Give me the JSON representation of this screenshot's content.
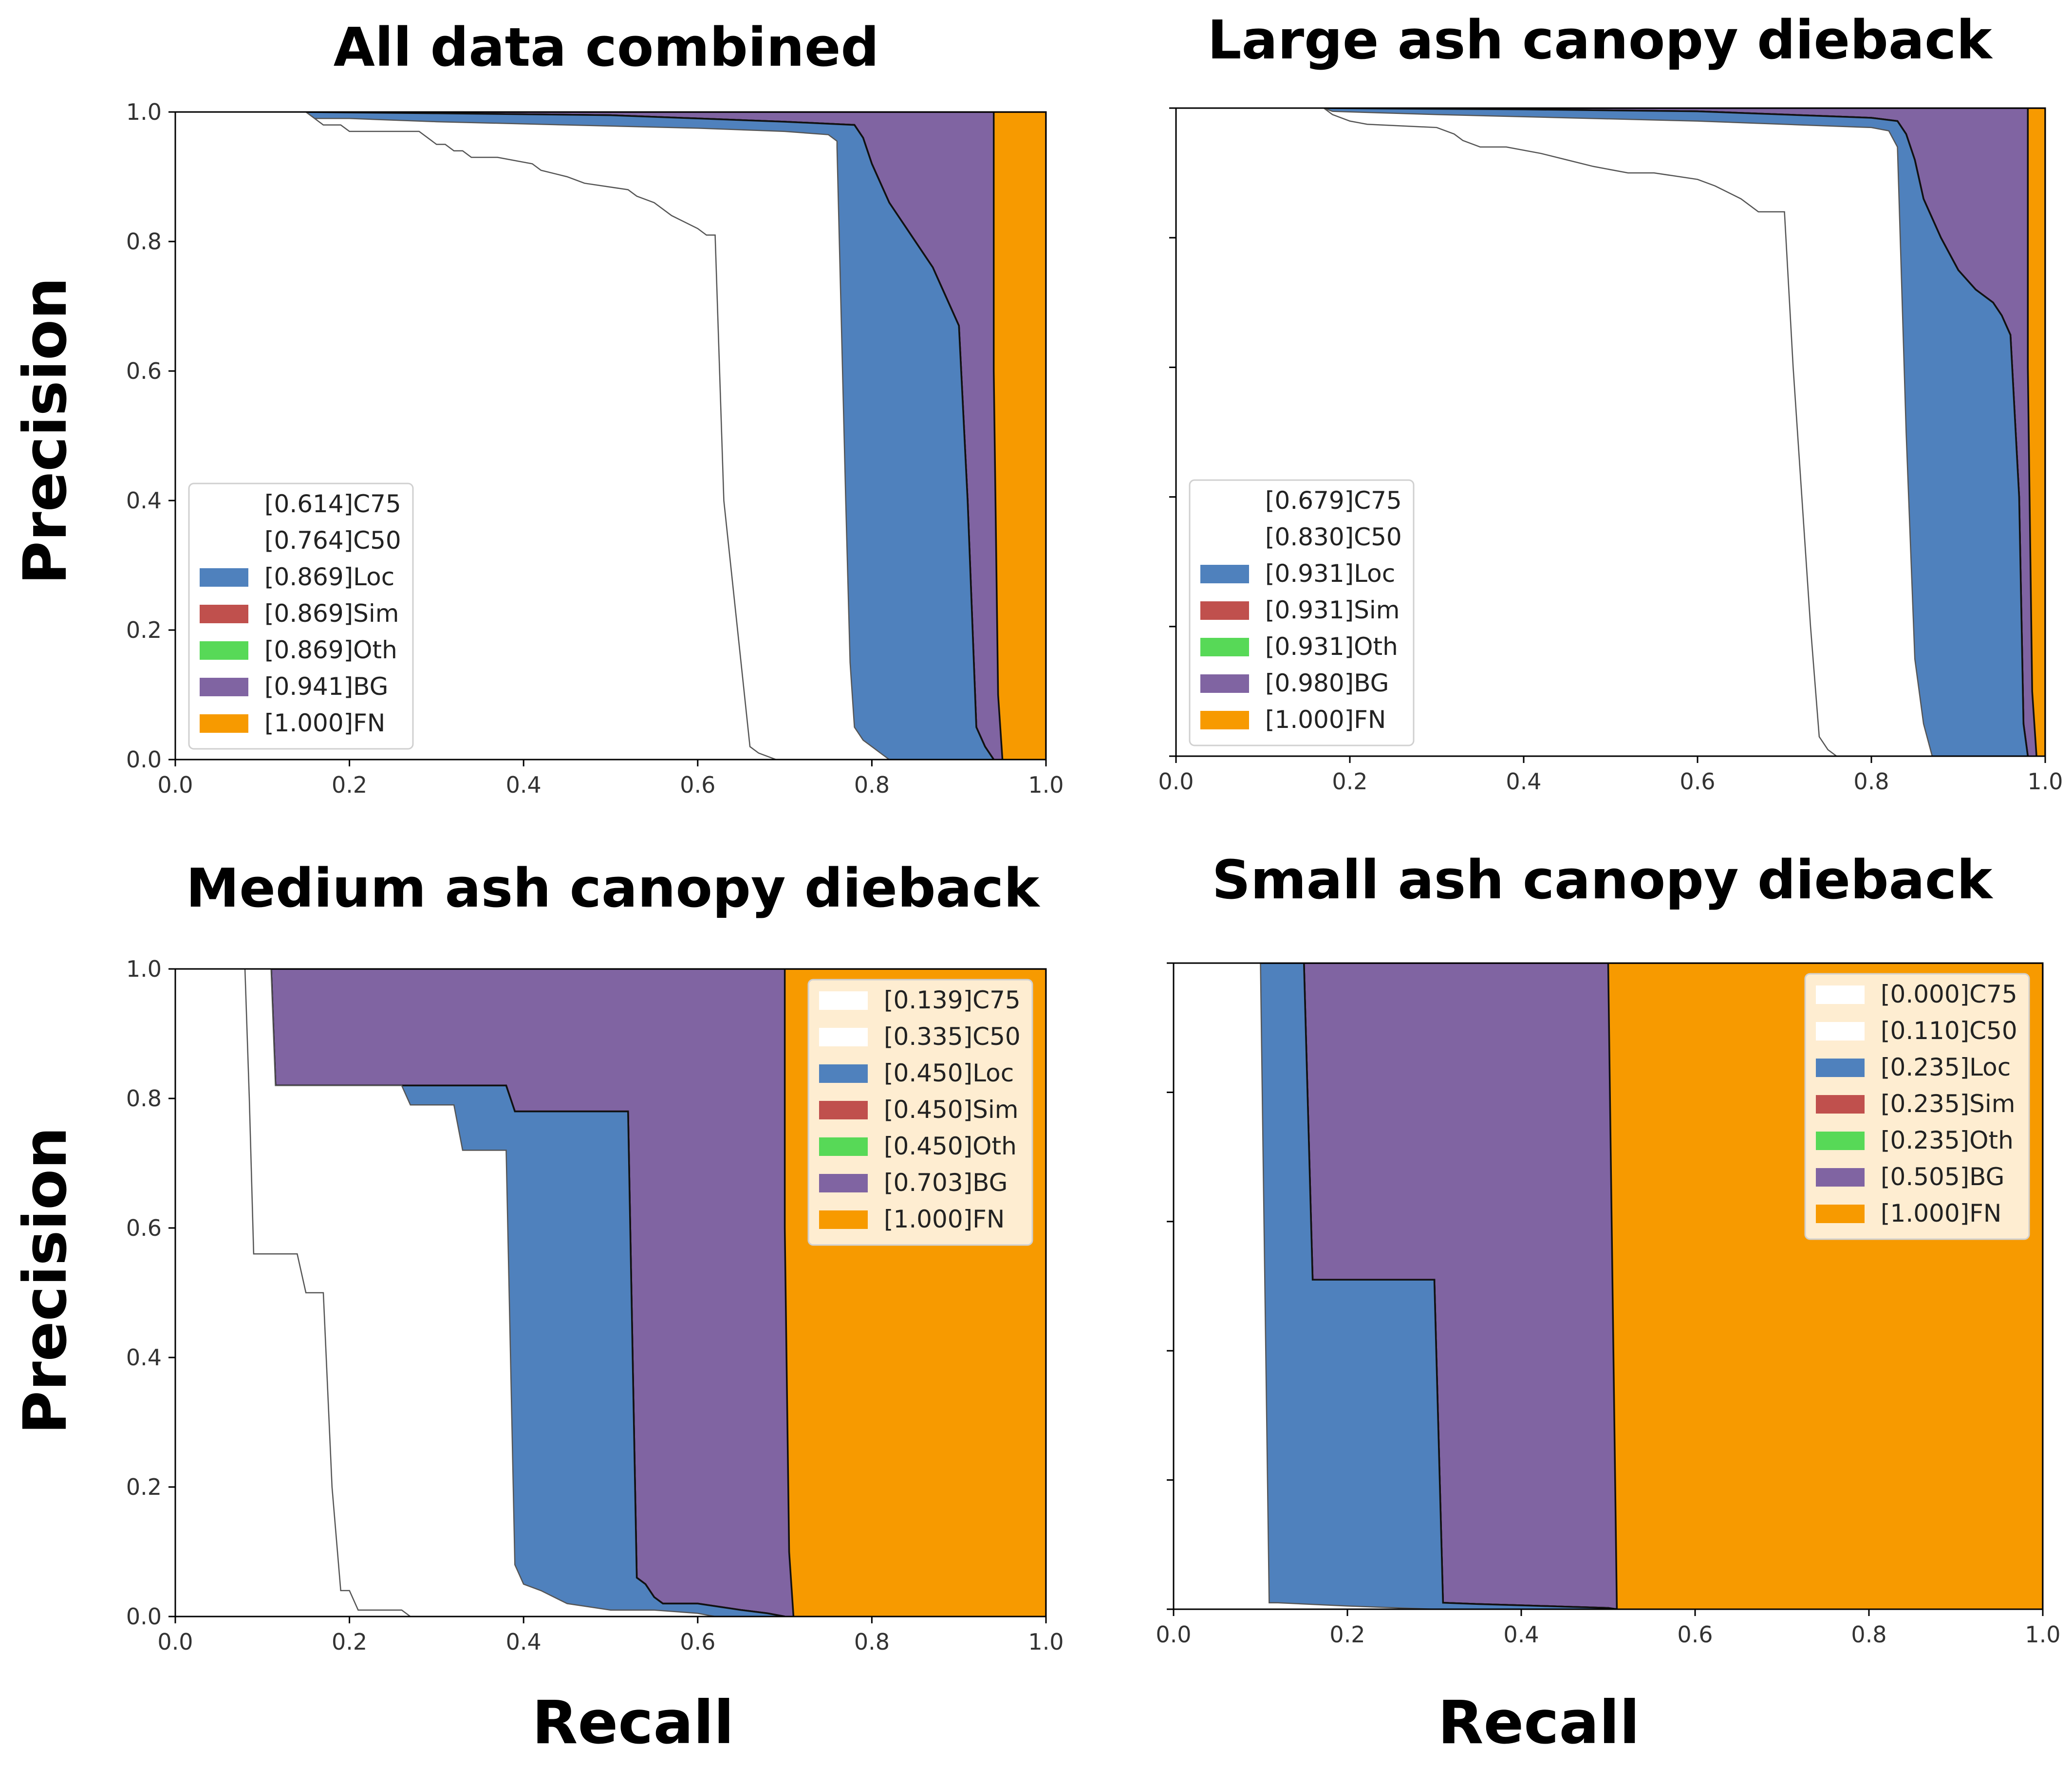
{
  "figure": {
    "ylabel": "Precision",
    "xlabel": "Recall"
  },
  "colors": {
    "C75": "#ffffff",
    "C50": "#ffffff",
    "Loc": "#4f81bd",
    "Sim": "#c0504d",
    "Oth": "#57d957",
    "BG": "#8064a2",
    "FN": "#f79a00"
  },
  "chart_data": [
    {
      "type": "area",
      "title": "All data combined",
      "xlabel": "Recall",
      "ylabel": "Precision",
      "xlim": [
        0,
        1
      ],
      "ylim": [
        0,
        1
      ],
      "xticks": [
        "0.0",
        "0.2",
        "0.4",
        "0.6",
        "0.8",
        "1.0"
      ],
      "yticks": [
        "0.0",
        "0.2",
        "0.4",
        "0.6",
        "0.8",
        "1.0"
      ],
      "show_yticklabels": true,
      "legend_position": "lower-left",
      "legend": [
        {
          "key": "C75",
          "label": "[0.614]C75"
        },
        {
          "key": "C50",
          "label": "[0.764]C50"
        },
        {
          "key": "Loc",
          "label": "[0.869]Loc"
        },
        {
          "key": "Sim",
          "label": "[0.869]Sim"
        },
        {
          "key": "Oth",
          "label": "[0.869]Oth"
        },
        {
          "key": "BG",
          "label": "[0.941]BG"
        },
        {
          "key": "FN",
          "label": "[1.000]FN"
        }
      ],
      "curves": {
        "C75": {
          "x": [
            0.0,
            0.15,
            0.17,
            0.19,
            0.2,
            0.28,
            0.3,
            0.31,
            0.32,
            0.33,
            0.34,
            0.36,
            0.37,
            0.41,
            0.42,
            0.45,
            0.47,
            0.52,
            0.53,
            0.55,
            0.57,
            0.6,
            0.61,
            0.62,
            0.63,
            0.66,
            0.67,
            0.69
          ],
          "y": [
            1.0,
            1.0,
            0.98,
            0.98,
            0.97,
            0.97,
            0.95,
            0.95,
            0.94,
            0.94,
            0.93,
            0.93,
            0.93,
            0.92,
            0.91,
            0.9,
            0.89,
            0.88,
            0.87,
            0.86,
            0.84,
            0.82,
            0.81,
            0.81,
            0.4,
            0.02,
            0.01,
            0.0
          ]
        },
        "C50": {
          "x": [
            0.0,
            0.15,
            0.16,
            0.2,
            0.3,
            0.45,
            0.6,
            0.7,
            0.75,
            0.76,
            0.76,
            0.77,
            0.775,
            0.78,
            0.79,
            0.8,
            0.81,
            0.82
          ],
          "y": [
            1.0,
            1.0,
            0.99,
            0.99,
            0.985,
            0.98,
            0.975,
            0.97,
            0.965,
            0.955,
            0.945,
            0.4,
            0.15,
            0.05,
            0.03,
            0.02,
            0.01,
            0.0
          ]
        },
        "Loc": {
          "x": [
            0.0,
            0.15,
            0.3,
            0.5,
            0.6,
            0.7,
            0.78,
            0.79,
            0.8,
            0.82,
            0.83,
            0.84,
            0.85,
            0.87,
            0.88,
            0.89,
            0.9,
            0.91,
            0.92,
            0.93,
            0.94
          ],
          "y": [
            1.0,
            1.0,
            0.998,
            0.995,
            0.99,
            0.985,
            0.98,
            0.96,
            0.92,
            0.86,
            0.84,
            0.82,
            0.8,
            0.76,
            0.73,
            0.7,
            0.67,
            0.4,
            0.05,
            0.02,
            0.0
          ]
        },
        "Sim": {
          "x": [
            0.0,
            0.15,
            0.3,
            0.5,
            0.6,
            0.7,
            0.78,
            0.79,
            0.8,
            0.82,
            0.83,
            0.84,
            0.85,
            0.87,
            0.88,
            0.89,
            0.9,
            0.91,
            0.92,
            0.93,
            0.94
          ],
          "y": [
            1.0,
            1.0,
            0.998,
            0.995,
            0.99,
            0.985,
            0.98,
            0.96,
            0.92,
            0.86,
            0.84,
            0.82,
            0.8,
            0.76,
            0.73,
            0.7,
            0.67,
            0.4,
            0.05,
            0.02,
            0.0
          ]
        },
        "Oth": {
          "x": [
            0.0,
            0.15,
            0.3,
            0.5,
            0.6,
            0.7,
            0.78,
            0.79,
            0.8,
            0.82,
            0.83,
            0.84,
            0.85,
            0.87,
            0.88,
            0.89,
            0.9,
            0.91,
            0.92,
            0.93,
            0.94
          ],
          "y": [
            1.0,
            1.0,
            0.998,
            0.995,
            0.99,
            0.985,
            0.98,
            0.96,
            0.92,
            0.86,
            0.84,
            0.82,
            0.8,
            0.76,
            0.73,
            0.7,
            0.67,
            0.4,
            0.05,
            0.02,
            0.0
          ]
        },
        "BG": {
          "x": [
            0.0,
            0.94,
            0.94,
            0.945,
            0.95
          ],
          "y": [
            1.0,
            1.0,
            0.6,
            0.1,
            0.0
          ]
        },
        "FN": {
          "x": [
            0.0,
            1.0,
            1.0
          ],
          "y": [
            1.0,
            1.0,
            0.0
          ]
        }
      }
    },
    {
      "type": "area",
      "title": "Large ash canopy dieback",
      "xlabel": "Recall",
      "ylabel": "Precision",
      "xlim": [
        0,
        1
      ],
      "ylim": [
        0,
        1
      ],
      "xticks": [
        "0.0",
        "0.2",
        "0.4",
        "0.6",
        "0.8",
        "1.0"
      ],
      "yticks": [
        "0.0",
        "0.2",
        "0.4",
        "0.6",
        "0.8",
        "1.0"
      ],
      "show_yticklabels": false,
      "legend_position": "lower-left",
      "legend": [
        {
          "key": "C75",
          "label": "[0.679]C75"
        },
        {
          "key": "C50",
          "label": "[0.830]C50"
        },
        {
          "key": "Loc",
          "label": "[0.931]Loc"
        },
        {
          "key": "Sim",
          "label": "[0.931]Sim"
        },
        {
          "key": "Oth",
          "label": "[0.931]Oth"
        },
        {
          "key": "BG",
          "label": "[0.980]BG"
        },
        {
          "key": "FN",
          "label": "[1.000]FN"
        }
      ],
      "curves": {
        "C75": {
          "x": [
            0.0,
            0.17,
            0.18,
            0.2,
            0.22,
            0.3,
            0.32,
            0.33,
            0.35,
            0.38,
            0.42,
            0.45,
            0.48,
            0.52,
            0.55,
            0.6,
            0.62,
            0.65,
            0.67,
            0.69,
            0.7,
            0.71,
            0.72,
            0.73,
            0.74,
            0.75,
            0.76
          ],
          "y": [
            1.0,
            1.0,
            0.99,
            0.98,
            0.975,
            0.97,
            0.96,
            0.95,
            0.94,
            0.94,
            0.93,
            0.92,
            0.91,
            0.9,
            0.9,
            0.89,
            0.88,
            0.86,
            0.84,
            0.84,
            0.84,
            0.6,
            0.4,
            0.2,
            0.03,
            0.01,
            0.0
          ]
        },
        "C50": {
          "x": [
            0.0,
            0.17,
            0.18,
            0.3,
            0.45,
            0.6,
            0.7,
            0.8,
            0.82,
            0.83,
            0.84,
            0.85,
            0.86,
            0.87
          ],
          "y": [
            1.0,
            1.0,
            0.995,
            0.99,
            0.985,
            0.98,
            0.975,
            0.97,
            0.965,
            0.94,
            0.5,
            0.15,
            0.05,
            0.0
          ]
        },
        "Loc": {
          "x": [
            0.0,
            0.17,
            0.4,
            0.6,
            0.7,
            0.8,
            0.83,
            0.84,
            0.85,
            0.86,
            0.88,
            0.9,
            0.92,
            0.94,
            0.95,
            0.96,
            0.97,
            0.975,
            0.98
          ],
          "y": [
            1.0,
            1.0,
            0.998,
            0.995,
            0.99,
            0.985,
            0.98,
            0.96,
            0.92,
            0.86,
            0.8,
            0.75,
            0.72,
            0.7,
            0.68,
            0.65,
            0.4,
            0.05,
            0.0
          ]
        },
        "Sim": {
          "x": [
            0.0,
            0.17,
            0.4,
            0.6,
            0.7,
            0.8,
            0.83,
            0.84,
            0.85,
            0.86,
            0.88,
            0.9,
            0.92,
            0.94,
            0.95,
            0.96,
            0.97,
            0.975,
            0.98
          ],
          "y": [
            1.0,
            1.0,
            0.998,
            0.995,
            0.99,
            0.985,
            0.98,
            0.96,
            0.92,
            0.86,
            0.8,
            0.75,
            0.72,
            0.7,
            0.68,
            0.65,
            0.4,
            0.05,
            0.0
          ]
        },
        "Oth": {
          "x": [
            0.0,
            0.17,
            0.4,
            0.6,
            0.7,
            0.8,
            0.83,
            0.84,
            0.85,
            0.86,
            0.88,
            0.9,
            0.92,
            0.94,
            0.95,
            0.96,
            0.97,
            0.975,
            0.98
          ],
          "y": [
            1.0,
            1.0,
            0.998,
            0.995,
            0.99,
            0.985,
            0.98,
            0.96,
            0.92,
            0.86,
            0.8,
            0.75,
            0.72,
            0.7,
            0.68,
            0.65,
            0.4,
            0.05,
            0.0
          ]
        },
        "BG": {
          "x": [
            0.0,
            0.98,
            0.98,
            0.985,
            0.99
          ],
          "y": [
            1.0,
            1.0,
            0.6,
            0.1,
            0.0
          ]
        },
        "FN": {
          "x": [
            0.0,
            1.0,
            1.0
          ],
          "y": [
            1.0,
            1.0,
            0.0
          ]
        }
      }
    },
    {
      "type": "area",
      "title": "Medium ash canopy dieback",
      "xlabel": "Recall",
      "ylabel": "Precision",
      "xlim": [
        0,
        1
      ],
      "ylim": [
        0,
        1
      ],
      "xticks": [
        "0.0",
        "0.2",
        "0.4",
        "0.6",
        "0.8",
        "1.0"
      ],
      "yticks": [
        "0.0",
        "0.2",
        "0.4",
        "0.6",
        "0.8",
        "1.0"
      ],
      "show_yticklabels": true,
      "legend_position": "upper-right",
      "legend": [
        {
          "key": "C75",
          "label": "[0.139]C75"
        },
        {
          "key": "C50",
          "label": "[0.335]C50"
        },
        {
          "key": "Loc",
          "label": "[0.450]Loc"
        },
        {
          "key": "Sim",
          "label": "[0.450]Sim"
        },
        {
          "key": "Oth",
          "label": "[0.450]Oth"
        },
        {
          "key": "BG",
          "label": "[0.703]BG"
        },
        {
          "key": "FN",
          "label": "[1.000]FN"
        }
      ],
      "curves": {
        "C75": {
          "x": [
            0.0,
            0.08,
            0.085,
            0.09,
            0.09,
            0.14,
            0.15,
            0.17,
            0.18,
            0.19,
            0.2,
            0.21,
            0.21,
            0.26,
            0.27
          ],
          "y": [
            1.0,
            1.0,
            0.8,
            0.56,
            0.56,
            0.56,
            0.5,
            0.5,
            0.2,
            0.04,
            0.04,
            0.01,
            0.01,
            0.01,
            0.0
          ]
        },
        "C50": {
          "x": [
            0.0,
            0.11,
            0.115,
            0.12,
            0.26,
            0.27,
            0.32,
            0.33,
            0.38,
            0.39,
            0.4,
            0.42,
            0.45,
            0.5,
            0.55,
            0.6,
            0.62,
            0.65,
            0.67,
            0.7
          ],
          "y": [
            1.0,
            1.0,
            0.82,
            0.82,
            0.82,
            0.79,
            0.79,
            0.72,
            0.72,
            0.08,
            0.05,
            0.04,
            0.02,
            0.01,
            0.01,
            0.005,
            0.0,
            0.0,
            0.0,
            0.0
          ]
        },
        "Loc": {
          "x": [
            0.0,
            0.11,
            0.115,
            0.12,
            0.38,
            0.39,
            0.52,
            0.53,
            0.54,
            0.55,
            0.56,
            0.6,
            0.65,
            0.68,
            0.7
          ],
          "y": [
            1.0,
            1.0,
            0.82,
            0.82,
            0.82,
            0.78,
            0.78,
            0.06,
            0.05,
            0.03,
            0.02,
            0.02,
            0.01,
            0.005,
            0.0
          ]
        },
        "Sim": {
          "x": [
            0.0,
            0.11,
            0.115,
            0.12,
            0.38,
            0.39,
            0.52,
            0.53,
            0.54,
            0.55,
            0.56,
            0.6,
            0.65,
            0.68,
            0.7
          ],
          "y": [
            1.0,
            1.0,
            0.82,
            0.82,
            0.82,
            0.78,
            0.78,
            0.06,
            0.05,
            0.03,
            0.02,
            0.02,
            0.01,
            0.005,
            0.0
          ]
        },
        "Oth": {
          "x": [
            0.0,
            0.11,
            0.115,
            0.12,
            0.38,
            0.39,
            0.52,
            0.53,
            0.54,
            0.55,
            0.56,
            0.6,
            0.65,
            0.68,
            0.7
          ],
          "y": [
            1.0,
            1.0,
            0.82,
            0.82,
            0.82,
            0.78,
            0.78,
            0.06,
            0.05,
            0.03,
            0.02,
            0.02,
            0.01,
            0.005,
            0.0
          ]
        },
        "BG": {
          "x": [
            0.0,
            0.7,
            0.7,
            0.705,
            0.71
          ],
          "y": [
            1.0,
            1.0,
            0.6,
            0.1,
            0.0
          ]
        },
        "FN": {
          "x": [
            0.0,
            1.0,
            1.0
          ],
          "y": [
            1.0,
            1.0,
            0.0
          ]
        }
      }
    },
    {
      "type": "area",
      "title": "Small ash canopy dieback",
      "xlabel": "Recall",
      "ylabel": "Precision",
      "xlim": [
        0,
        1
      ],
      "ylim": [
        0,
        1
      ],
      "xticks": [
        "0.0",
        "0.2",
        "0.4",
        "0.6",
        "0.8",
        "1.0"
      ],
      "yticks": [
        "0.0",
        "0.2",
        "0.4",
        "0.6",
        "0.8",
        "1.0"
      ],
      "show_yticklabels": false,
      "legend_position": "upper-right",
      "legend": [
        {
          "key": "C75",
          "label": "[0.000]C75"
        },
        {
          "key": "C50",
          "label": "[0.110]C50"
        },
        {
          "key": "Loc",
          "label": "[0.235]Loc"
        },
        {
          "key": "Sim",
          "label": "[0.235]Sim"
        },
        {
          "key": "Oth",
          "label": "[0.235]Oth"
        },
        {
          "key": "BG",
          "label": "[0.505]BG"
        },
        {
          "key": "FN",
          "label": "[1.000]FN"
        }
      ],
      "curves": {
        "C75": {
          "x": [
            0.0,
            0.0
          ],
          "y": [
            0.0,
            0.0
          ]
        },
        "C50": {
          "x": [
            0.0,
            0.1,
            0.11,
            0.12,
            0.2,
            0.3,
            0.31
          ],
          "y": [
            1.0,
            1.0,
            0.01,
            0.01,
            0.005,
            0.0,
            0.0
          ]
        },
        "Loc": {
          "x": [
            0.0,
            0.15,
            0.16,
            0.3,
            0.31,
            0.35,
            0.4,
            0.45,
            0.5,
            0.51
          ],
          "y": [
            1.0,
            1.0,
            0.51,
            0.51,
            0.01,
            0.008,
            0.006,
            0.004,
            0.002,
            0.0
          ]
        },
        "Sim": {
          "x": [
            0.0,
            0.15,
            0.16,
            0.3,
            0.31,
            0.35,
            0.4,
            0.45,
            0.5,
            0.51
          ],
          "y": [
            1.0,
            1.0,
            0.51,
            0.51,
            0.01,
            0.008,
            0.006,
            0.004,
            0.002,
            0.0
          ]
        },
        "Oth": {
          "x": [
            0.0,
            0.15,
            0.16,
            0.3,
            0.31,
            0.35,
            0.4,
            0.45,
            0.5,
            0.51
          ],
          "y": [
            1.0,
            1.0,
            0.51,
            0.51,
            0.01,
            0.008,
            0.006,
            0.004,
            0.002,
            0.0
          ]
        },
        "BG": {
          "x": [
            0.0,
            0.5,
            0.51
          ],
          "y": [
            1.0,
            1.0,
            0.0
          ]
        },
        "FN": {
          "x": [
            0.0,
            1.0,
            1.0
          ],
          "y": [
            1.0,
            1.0,
            0.0
          ]
        }
      }
    }
  ]
}
